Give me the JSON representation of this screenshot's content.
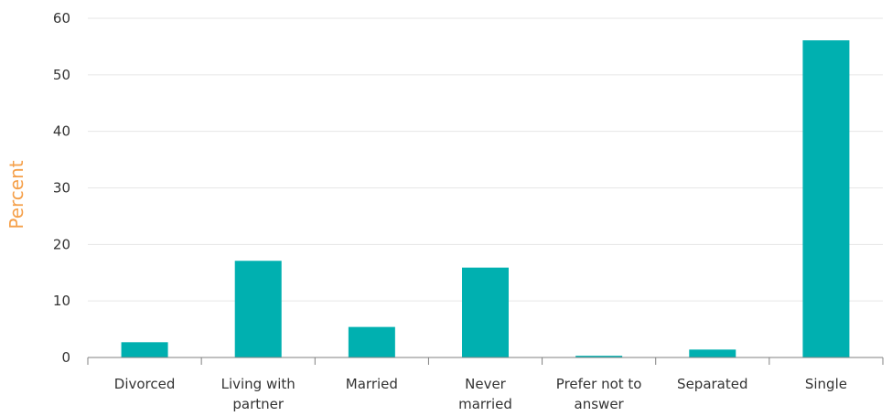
{
  "chart_data": {
    "type": "bar",
    "categories": [
      "Divorced",
      "Living with partner",
      "Married",
      "Never married",
      "Prefer not to answer",
      "Separated",
      "Single"
    ],
    "category_lines": [
      [
        "Divorced"
      ],
      [
        "Living with",
        "partner"
      ],
      [
        "Married"
      ],
      [
        "Never",
        "married"
      ],
      [
        "Prefer not to",
        "answer"
      ],
      [
        "Separated"
      ],
      [
        "Single"
      ]
    ],
    "values": [
      2.7,
      17.1,
      5.4,
      15.9,
      0.3,
      1.4,
      56.1
    ],
    "ylabel": "Percent",
    "xlabel": "",
    "ylim": [
      0,
      60
    ],
    "yticks": [
      0,
      10,
      20,
      30,
      40,
      50,
      60
    ],
    "grid": true,
    "legend": false,
    "bar_color": "#00b0b0",
    "ylabel_color": "#f5a04a"
  }
}
